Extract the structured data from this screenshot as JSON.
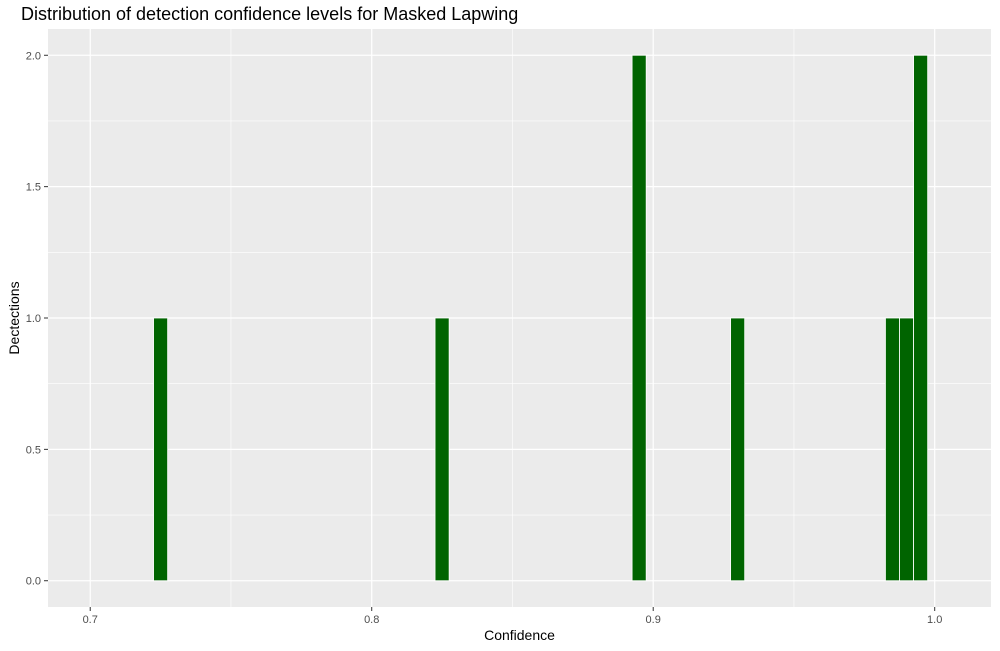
{
  "chart_data": {
    "type": "bar",
    "title": "Distribution of detection confidence levels for Masked Lapwing",
    "xlabel": "Confidence",
    "ylabel": "Dectections",
    "xlim": [
      0.685,
      1.02
    ],
    "ylim": [
      -0.1,
      2.1
    ],
    "bin_width": 0.005,
    "x_ticks": [
      {
        "value": 0.7,
        "label": "0.7"
      },
      {
        "value": 0.8,
        "label": "0.8"
      },
      {
        "value": 0.9,
        "label": "0.9"
      },
      {
        "value": 1.0,
        "label": "1.0"
      }
    ],
    "y_ticks": [
      {
        "value": 0.0,
        "label": "0.0"
      },
      {
        "value": 0.5,
        "label": "0.5"
      },
      {
        "value": 1.0,
        "label": "1.0"
      },
      {
        "value": 1.5,
        "label": "1.5"
      },
      {
        "value": 2.0,
        "label": "2.0"
      }
    ],
    "x": [
      0.725,
      0.825,
      0.895,
      0.93,
      0.985,
      0.99,
      0.995
    ],
    "values": [
      1,
      1,
      2,
      1,
      1,
      1,
      2
    ],
    "bar_color": "#006400",
    "bar_outline": "#ffffff",
    "panel_background": "#ebebeb",
    "grid": true,
    "grid_color": "#ffffff"
  }
}
